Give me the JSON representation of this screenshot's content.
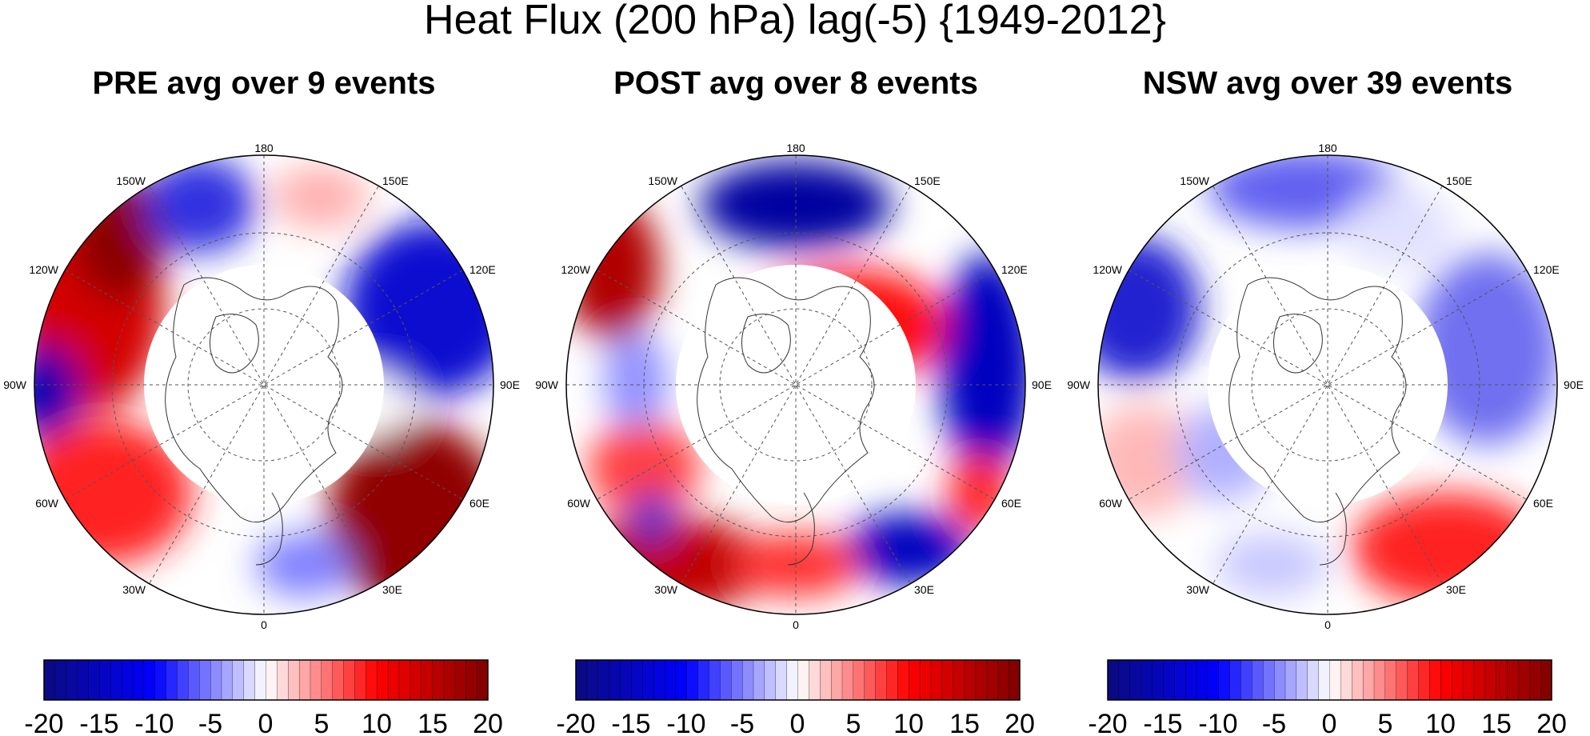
{
  "title": "Heat Flux (200 hPa) lag(-5) {1949-2012}",
  "colorbar": {
    "ticks": [
      "-20",
      "-15",
      "-10",
      "-5",
      "0",
      "5",
      "10",
      "15",
      "20"
    ],
    "min": -20,
    "max": 20,
    "interval": 1,
    "colors": {
      "neg_max": "#0a0a80",
      "neg_mid": "#0000ff",
      "zero": "#ffffff",
      "pos_mid": "#ff0000",
      "pos_max": "#800000"
    }
  },
  "map": {
    "projection": "north polar stereographic",
    "longitude_labels": [
      "180",
      "150E",
      "120E",
      "90E",
      "60E",
      "30E",
      "0",
      "30W",
      "60W",
      "90W",
      "120W",
      "150W"
    ]
  },
  "panels": [
    {
      "id": "pre",
      "title": "PRE avg over 9 events"
    },
    {
      "id": "post",
      "title": "POST avg over 8 events"
    },
    {
      "id": "nsw",
      "title": "NSW avg over 39 events"
    }
  ]
}
